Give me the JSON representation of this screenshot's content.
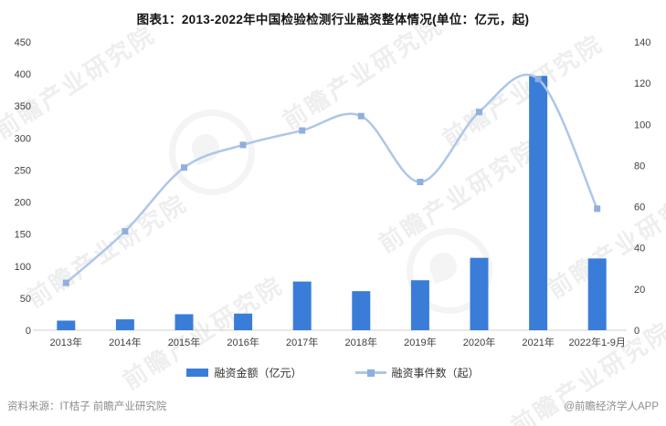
{
  "title": "图表1：2013-2022年中国检验检测行业融资整体情况(单位：亿元，起)",
  "chart_data": {
    "type": "combo",
    "categories": [
      "2013年",
      "2014年",
      "2015年",
      "2016年",
      "2017年",
      "2018年",
      "2019年",
      "2020年",
      "2021年",
      "2022年1-9月"
    ],
    "series": [
      {
        "name": "融资金额（亿元）",
        "type": "bar",
        "axis": "left",
        "values": [
          15,
          17,
          25,
          26,
          76,
          61,
          78,
          113,
          397,
          112
        ]
      },
      {
        "name": "融资事件数（起）",
        "type": "line",
        "axis": "right",
        "values": [
          23,
          48,
          79,
          90,
          97,
          104,
          72,
          106,
          122,
          59
        ]
      }
    ],
    "left_axis": {
      "min": 0,
      "max": 450,
      "step": 50
    },
    "right_axis": {
      "min": 0,
      "max": 140,
      "step": 20
    },
    "grid": false,
    "legend_position": "bottom",
    "title": "图表1：2013-2022年中国检验检测行业融资整体情况(单位：亿元，起)",
    "xlabel": "",
    "ylabel_left": "亿元",
    "ylabel_right": "起"
  },
  "legend": {
    "bar_label": "融资金额（亿元）",
    "line_label": "融资事件数（起）"
  },
  "footer": {
    "source": "资料来源：IT桔子 前瞻产业研究院",
    "credit": "@前瞻经济学人APP"
  },
  "watermark": {
    "text": "前瞻产业研究院"
  },
  "colors": {
    "bar": "#3A7DD8",
    "line": "#AEC6E8",
    "marker": "#8FAFDC",
    "axis_line": "#D9D9D9",
    "tick_text": "#404040",
    "footer_text": "#8C8C8C"
  }
}
